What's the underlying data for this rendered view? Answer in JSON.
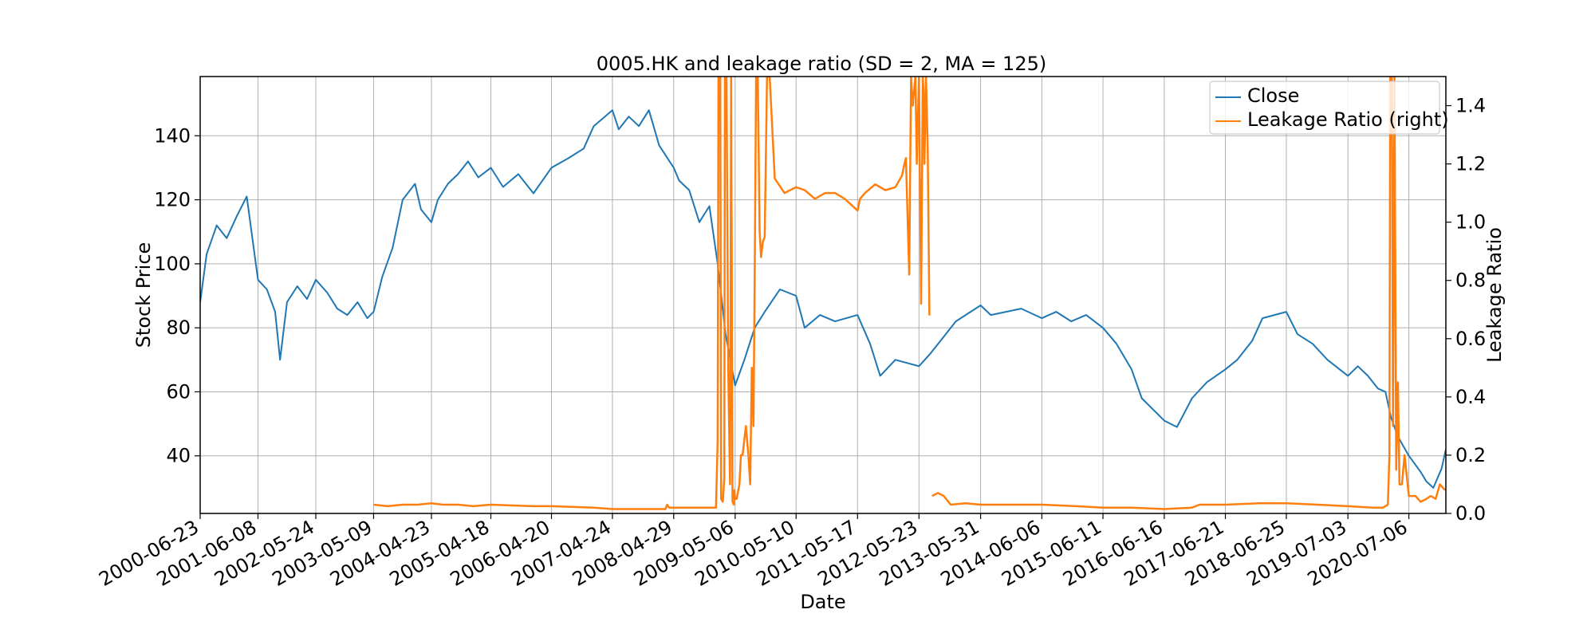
{
  "chart_data": {
    "type": "line",
    "title": "0005.HK and leakage ratio (SD = 2, MA = 125)",
    "xlabel": "Date",
    "ylabel_left": "Stock Price",
    "ylabel_right": "Leakage Ratio",
    "grid": true,
    "legend_position": "upper-right",
    "x_tick_labels": [
      "2000-06-23",
      "2001-06-08",
      "2002-05-24",
      "2003-05-09",
      "2004-04-23",
      "2005-04-18",
      "2006-04-20",
      "2007-04-24",
      "2008-04-29",
      "2009-05-06",
      "2010-05-10",
      "2011-05-17",
      "2012-05-23",
      "2013-05-31",
      "2014-06-06",
      "2015-06-11",
      "2016-06-16",
      "2017-06-21",
      "2018-06-25",
      "2019-07-03",
      "2020-07-06"
    ],
    "xlim": [
      "2000-06-23",
      "2021-02-15"
    ],
    "y_left_ticks": [
      40,
      60,
      80,
      100,
      120,
      140
    ],
    "y_left_lim": [
      22,
      158.5
    ],
    "y_right_ticks": [
      0.0,
      0.2,
      0.4,
      0.6,
      0.8,
      1.0,
      1.2,
      1.4
    ],
    "y_right_lim": [
      0.0,
      1.5
    ],
    "series": [
      {
        "name": "Close",
        "axis": "left",
        "color": "#1f77b4",
        "x": [
          "2000-06-23",
          "2000-08-01",
          "2000-10-01",
          "2000-12-01",
          "2001-02-01",
          "2001-04-01",
          "2001-06-08",
          "2001-08-01",
          "2001-09-20",
          "2001-10-20",
          "2001-12-01",
          "2002-02-01",
          "2002-04-01",
          "2002-05-24",
          "2002-08-01",
          "2002-10-01",
          "2002-12-01",
          "2003-02-01",
          "2003-04-01",
          "2003-05-09",
          "2003-07-01",
          "2003-09-01",
          "2003-11-01",
          "2004-01-15",
          "2004-02-20",
          "2004-04-23",
          "2004-06-01",
          "2004-08-01",
          "2004-10-01",
          "2004-12-01",
          "2005-02-01",
          "2005-04-18",
          "2005-07-01",
          "2005-10-01",
          "2006-01-01",
          "2006-04-20",
          "2006-08-01",
          "2006-11-01",
          "2007-01-01",
          "2007-04-24",
          "2007-06-01",
          "2007-08-01",
          "2007-10-01",
          "2007-12-01",
          "2008-02-01",
          "2008-04-29",
          "2008-06-01",
          "2008-08-01",
          "2008-10-01",
          "2008-12-01",
          "2009-01-20",
          "2009-03-09",
          "2009-05-06",
          "2009-07-01",
          "2009-09-01",
          "2009-11-01",
          "2010-02-01",
          "2010-05-10",
          "2010-07-01",
          "2010-10-01",
          "2011-01-01",
          "2011-05-17",
          "2011-08-01",
          "2011-10-01",
          "2012-01-01",
          "2012-05-23",
          "2012-08-01",
          "2012-10-01",
          "2013-01-01",
          "2013-05-31",
          "2013-08-01",
          "2013-11-01",
          "2014-02-01",
          "2014-06-06",
          "2014-09-01",
          "2014-12-01",
          "2015-03-01",
          "2015-06-11",
          "2015-09-01",
          "2015-12-01",
          "2016-02-01",
          "2016-06-16",
          "2016-09-01",
          "2016-12-01",
          "2017-03-01",
          "2017-06-21",
          "2017-09-01",
          "2017-12-01",
          "2018-02-01",
          "2018-06-25",
          "2018-09-01",
          "2018-12-01",
          "2019-03-01",
          "2019-07-03",
          "2019-09-01",
          "2019-11-01",
          "2020-01-01",
          "2020-02-15",
          "2020-03-20",
          "2020-05-01",
          "2020-07-06",
          "2020-09-15",
          "2020-10-20",
          "2020-12-01",
          "2021-01-20",
          "2021-02-15"
        ],
        "values": [
          88,
          103,
          112,
          108,
          115,
          121,
          95,
          92,
          85,
          70,
          88,
          93,
          89,
          95,
          91,
          86,
          84,
          88,
          83,
          85,
          96,
          105,
          120,
          125,
          117,
          113,
          120,
          125,
          128,
          132,
          127,
          130,
          124,
          128,
          122,
          130,
          133,
          136,
          143,
          148,
          142,
          146,
          143,
          148,
          137,
          130,
          126,
          123,
          113,
          118,
          100,
          78,
          62,
          70,
          80,
          85,
          92,
          90,
          80,
          84,
          82,
          84,
          75,
          65,
          70,
          68,
          72,
          76,
          82,
          87,
          84,
          85,
          86,
          83,
          85,
          82,
          84,
          80,
          75,
          67,
          58,
          51,
          49,
          58,
          63,
          67,
          70,
          76,
          83,
          85,
          78,
          75,
          70,
          65,
          68,
          65,
          61,
          60,
          52,
          46,
          40,
          35,
          32,
          30,
          36,
          42
        ]
      },
      {
        "name": "Leakage Ratio (right)",
        "axis": "right",
        "color": "#ff7f0e",
        "segments": [
          {
            "x": [
              "2003-05-09",
              "2003-08-01",
              "2003-11-01",
              "2004-02-01",
              "2004-04-23",
              "2004-07-01",
              "2004-10-01",
              "2005-01-01",
              "2005-04-18",
              "2006-01-01",
              "2006-04-20",
              "2007-01-01",
              "2007-04-24",
              "2007-10-01",
              "2008-01-01",
              "2008-03-10",
              "2008-03-20",
              "2008-04-01",
              "2008-04-29",
              "2008-08-01",
              "2008-12-01",
              "2009-01-10",
              "2009-01-20",
              "2009-01-25",
              "2009-02-05",
              "2009-02-10",
              "2009-02-20",
              "2009-03-01",
              "2009-03-05",
              "2009-03-10",
              "2009-03-15",
              "2009-03-25",
              "2009-04-05",
              "2009-04-12",
              "2009-04-20",
              "2009-04-28",
              "2009-05-01",
              "2009-05-06",
              "2009-05-15",
              "2009-06-01",
              "2009-06-10",
              "2009-06-20",
              "2009-07-10",
              "2009-07-25",
              "2009-08-05",
              "2009-08-15",
              "2009-08-25",
              "2009-09-01",
              "2009-09-10",
              "2009-09-20",
              "2009-10-01",
              "2009-10-10",
              "2009-10-20",
              "2009-11-01",
              "2009-11-15",
              "2009-12-01",
              "2010-01-01",
              "2010-03-01",
              "2010-05-10",
              "2010-07-01",
              "2010-09-01",
              "2010-11-01",
              "2011-01-01",
              "2011-03-01",
              "2011-05-17",
              "2011-06-01",
              "2011-07-01",
              "2011-09-01",
              "2011-11-01",
              "2012-01-01",
              "2012-02-10",
              "2012-02-25",
              "2012-03-05",
              "2012-03-15",
              "2012-03-25",
              "2012-04-05",
              "2012-04-15",
              "2012-05-01",
              "2012-05-10",
              "2012-05-23",
              "2012-06-05",
              "2012-06-15",
              "2012-06-20",
              "2012-06-25",
              "2012-07-05",
              "2012-07-15",
              "2012-07-25"
            ],
            "values": [
              0.03,
              0.025,
              0.03,
              0.03,
              0.035,
              0.03,
              0.03,
              0.025,
              0.03,
              0.025,
              0.025,
              0.02,
              0.015,
              0.015,
              0.015,
              0.015,
              0.03,
              0.02,
              0.02,
              0.02,
              0.02,
              0.02,
              0.25,
              1.5,
              1.5,
              0.05,
              0.04,
              0.12,
              1.5,
              1.5,
              1.5,
              0.5,
              0.1,
              1.5,
              0.04,
              0.03,
              0.08,
              0.05,
              0.05,
              0.1,
              0.2,
              0.2,
              0.3,
              0.2,
              0.1,
              0.5,
              0.3,
              0.8,
              1.5,
              1.5,
              0.97,
              0.88,
              0.93,
              0.95,
              1.5,
              1.5,
              1.15,
              1.1,
              1.12,
              1.11,
              1.08,
              1.1,
              1.1,
              1.08,
              1.04,
              1.08,
              1.1,
              1.13,
              1.11,
              1.12,
              1.16,
              1.2,
              1.22,
              1.02,
              0.82,
              1.5,
              1.4,
              1.5,
              1.2,
              1.5,
              0.72,
              1.5,
              1.45,
              1.2,
              1.5,
              1.25,
              0.68
            ]
          },
          {
            "x": [
              "2012-08-10",
              "2012-09-15",
              "2012-10-20",
              "2012-12-01",
              "2013-03-01",
              "2013-05-31",
              "2013-09-01",
              "2014-01-01",
              "2014-06-06",
              "2015-01-01",
              "2015-06-11",
              "2015-12-01",
              "2016-06-16",
              "2016-12-01",
              "2017-01-15",
              "2017-06-21",
              "2018-01-15",
              "2018-06-25",
              "2019-01-01",
              "2019-07-03",
              "2019-12-01",
              "2020-02-01",
              "2020-03-01",
              "2020-03-10",
              "2020-03-15",
              "2020-03-25",
              "2020-04-01",
              "2020-04-10",
              "2020-04-20",
              "2020-05-01",
              "2020-05-10",
              "2020-05-25",
              "2020-06-10",
              "2020-07-06",
              "2020-08-15",
              "2020-09-15",
              "2020-10-20",
              "2020-11-15",
              "2020-12-15",
              "2021-01-10",
              "2021-02-10"
            ],
            "values": [
              0.06,
              0.07,
              0.06,
              0.03,
              0.035,
              0.03,
              0.03,
              0.03,
              0.03,
              0.025,
              0.02,
              0.02,
              0.015,
              0.02,
              0.03,
              0.03,
              0.035,
              0.035,
              0.03,
              0.025,
              0.02,
              0.02,
              0.03,
              0.2,
              1.5,
              1.5,
              0.3,
              1.5,
              0.15,
              0.45,
              0.1,
              0.1,
              0.2,
              0.06,
              0.06,
              0.04,
              0.05,
              0.06,
              0.05,
              0.1,
              0.08
            ]
          }
        ]
      }
    ]
  }
}
